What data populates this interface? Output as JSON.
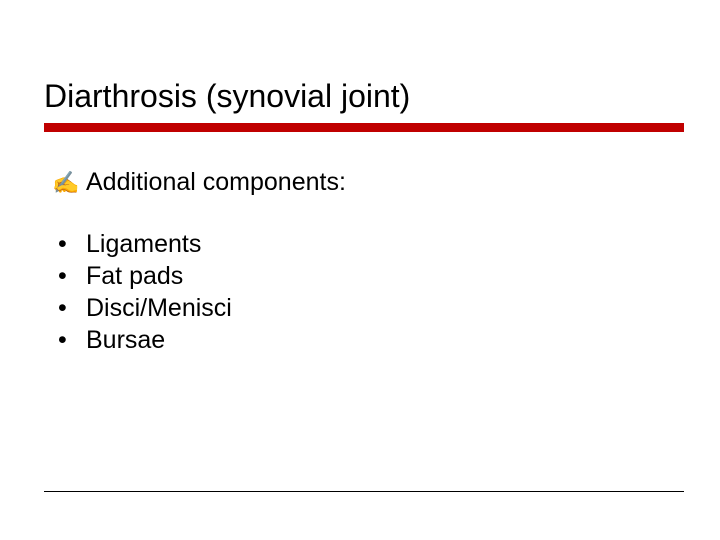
{
  "slide": {
    "title": "Diarthrosis (synovial joint)",
    "intro": {
      "bullet_glyph": "✍",
      "text": "Additional components:"
    },
    "items": [
      {
        "bullet": "•",
        "text": "Ligaments"
      },
      {
        "bullet": "•",
        "text": "Fat pads"
      },
      {
        "bullet": "•",
        "text": "Disci/Menisci"
      },
      {
        "bullet": "•",
        "text": "Bursae"
      }
    ]
  },
  "style": {
    "title_fontsize": 32,
    "body_fontsize": 25,
    "title_color": "#000000",
    "body_color": "#000000",
    "underline_color": "#c00000",
    "underline_height": 9,
    "background_color": "#ffffff",
    "footer_line_color": "#000000",
    "font_family": "Verdana"
  }
}
